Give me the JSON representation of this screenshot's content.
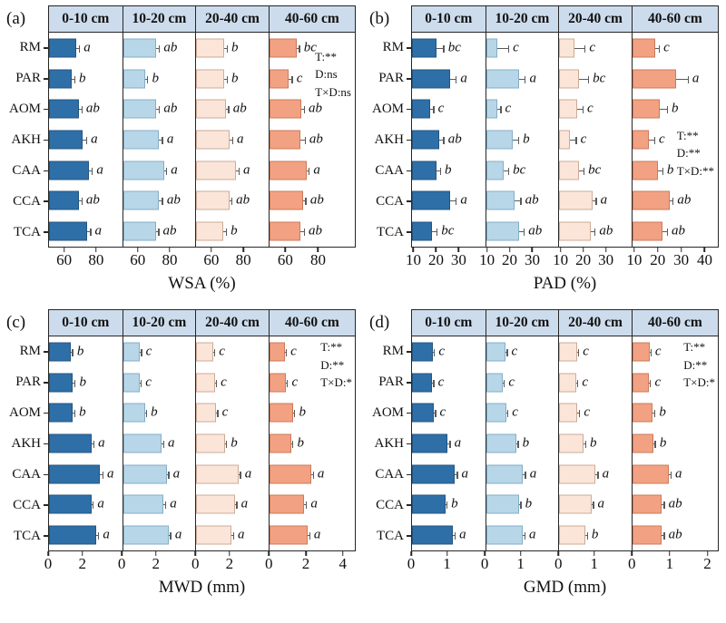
{
  "colors": {
    "depth_fills": [
      "#2e6fa8",
      "#b7d6e8",
      "#fbe5d8",
      "#f2a283"
    ],
    "bar_borders": [
      "#24557f",
      "#85aec7",
      "#cdab97",
      "#cc7a58"
    ],
    "error_bar": "#5a5a5a",
    "header_bg": "#cddcec",
    "frame": "#262626"
  },
  "chart_data": [
    {
      "type": "bar",
      "orientation": "horizontal",
      "panel_label": "(a)",
      "xlabel": "WSA (%)",
      "categories": [
        "RM",
        "PAR",
        "AOM",
        "AKH",
        "CAA",
        "CCA",
        "TCA"
      ],
      "axis": {
        "min": 50,
        "col_max": 96,
        "col4_max": 103,
        "ticks": [
          60,
          80
        ],
        "col4_ticks": [
          60,
          80
        ]
      },
      "stats_lines": [
        "T:**",
        "D:ns",
        "T×D:ns"
      ],
      "series": [
        {
          "name": "0-10 cm",
          "values": [
            67,
            64,
            69,
            71,
            75,
            69,
            74
          ],
          "errors": [
            2,
            2,
            1.5,
            2.5,
            2,
            1.5,
            2
          ],
          "letters": [
            "a",
            "b",
            "ab",
            "a",
            "a",
            "ab",
            "a"
          ]
        },
        {
          "name": "10-20 cm",
          "values": [
            71,
            64,
            71,
            73,
            76,
            73,
            71
          ],
          "errors": [
            2,
            1.5,
            2,
            2,
            1.5,
            2,
            1.5
          ],
          "letters": [
            "ab",
            "b",
            "ab",
            "a",
            "a",
            "ab",
            "ab"
          ]
        },
        {
          "name": "20-40 cm",
          "values": [
            68,
            68,
            69,
            71,
            75,
            71,
            67
          ],
          "errors": [
            1.5,
            1.5,
            1.5,
            2,
            2,
            1.5,
            2
          ],
          "letters": [
            "b",
            "b",
            "ab",
            "a",
            "a",
            "ab",
            "b"
          ]
        },
        {
          "name": "40-60 cm",
          "values": [
            67,
            62,
            70,
            69,
            73,
            71,
            69
          ],
          "errors": [
            1.5,
            2,
            1.5,
            3,
            1.5,
            1.5,
            2.5
          ],
          "letters": [
            "bc",
            "c",
            "ab",
            "ab",
            "a",
            "ab",
            "ab"
          ]
        }
      ]
    },
    {
      "type": "bar",
      "orientation": "horizontal",
      "panel_label": "(b)",
      "xlabel": "PAD (%)",
      "categories": [
        "RM",
        "PAR",
        "AOM",
        "AKH",
        "CAA",
        "CCA",
        "TCA"
      ],
      "axis": {
        "min": 9,
        "col_max": 41.5,
        "col4_max": 46,
        "ticks": [
          10,
          20,
          30
        ],
        "col4_ticks": [
          10,
          20,
          30,
          40
        ]
      },
      "stats_lines": [
        "T:**",
        "D:**",
        "T×D:**"
      ],
      "series": [
        {
          "name": "0-10 cm",
          "values": [
            20,
            26,
            17,
            21,
            20,
            26,
            18
          ],
          "errors": [
            3,
            2.5,
            1.5,
            2,
            1.5,
            2.5,
            2
          ],
          "letters": [
            "bc",
            "a",
            "c",
            "ab",
            "b",
            "a",
            "bc"
          ]
        },
        {
          "name": "10-20 cm",
          "values": [
            14,
            24,
            14,
            21,
            17,
            22,
            24
          ],
          "errors": [
            5,
            2.5,
            1.5,
            2.5,
            2,
            2.5,
            2
          ],
          "letters": [
            "c",
            "a",
            "c",
            "b",
            "bc",
            "ab",
            "ab"
          ]
        },
        {
          "name": "20-40 cm",
          "values": [
            16,
            18,
            17,
            14,
            18,
            24,
            23
          ],
          "errors": [
            4.5,
            4,
            2.5,
            2.5,
            2,
            1.5,
            2
          ],
          "letters": [
            "c",
            "bc",
            "c",
            "c",
            "bc",
            "a",
            "ab"
          ]
        },
        {
          "name": "40-60 cm",
          "values": [
            19,
            28,
            21,
            16,
            20,
            25,
            22
          ],
          "errors": [
            1.5,
            5,
            3,
            2.5,
            2,
            1.5,
            2
          ],
          "letters": [
            "c",
            "a",
            "b",
            "c",
            "b",
            "ab",
            "ab"
          ]
        }
      ]
    },
    {
      "type": "bar",
      "orientation": "horizontal",
      "panel_label": "(c)",
      "xlabel": "MWD (mm)",
      "categories": [
        "RM",
        "PAR",
        "AOM",
        "AKH",
        "CAA",
        "CCA",
        "TCA"
      ],
      "axis": {
        "min": 0,
        "col_max": 4.3,
        "col4_max": 4.7,
        "ticks": [
          0,
          2
        ],
        "col4_ticks": [
          0,
          2,
          4
        ]
      },
      "stats_lines": [
        "T:**",
        "D:**",
        "T×D:*"
      ],
      "series": [
        {
          "name": "0-10 cm",
          "values": [
            1.3,
            1.4,
            1.4,
            2.5,
            3.0,
            2.5,
            2.8
          ],
          "errors": [
            0.08,
            0.12,
            0.1,
            0.12,
            0.15,
            0.08,
            0.1
          ],
          "letters": [
            "b",
            "b",
            "b",
            "a",
            "a",
            "a",
            "a"
          ]
        },
        {
          "name": "10-20 cm",
          "values": [
            1.0,
            1.0,
            1.3,
            2.3,
            2.6,
            2.4,
            2.7
          ],
          "errors": [
            0.08,
            0.06,
            0.08,
            0.1,
            0.1,
            0.12,
            0.12
          ],
          "letters": [
            "c",
            "c",
            "b",
            "a",
            "a",
            "a",
            "a"
          ]
        },
        {
          "name": "20-40 cm",
          "values": [
            1.0,
            1.1,
            1.2,
            1.7,
            2.5,
            2.3,
            2.1
          ],
          "errors": [
            0.08,
            0.08,
            0.06,
            0.08,
            0.12,
            0.1,
            0.1
          ],
          "letters": [
            "c",
            "c",
            "c",
            "b",
            "a",
            "a",
            "a"
          ]
        },
        {
          "name": "40-60 cm",
          "values": [
            0.85,
            0.9,
            1.3,
            1.2,
            2.3,
            1.9,
            2.1
          ],
          "errors": [
            0.06,
            0.08,
            0.08,
            0.08,
            0.1,
            0.12,
            0.1
          ],
          "letters": [
            "c",
            "c",
            "b",
            "b",
            "a",
            "a",
            "a"
          ]
        }
      ]
    },
    {
      "type": "bar",
      "orientation": "horizontal",
      "panel_label": "(d)",
      "xlabel": "GMD (mm)",
      "categories": [
        "RM",
        "PAR",
        "AOM",
        "AKH",
        "CAA",
        "CCA",
        "TCA"
      ],
      "axis": {
        "min": 0,
        "col_max": 2.05,
        "col4_max": 2.3,
        "ticks": [
          0,
          1
        ],
        "col4_ticks": [
          0,
          1,
          2
        ]
      },
      "stats_lines": [
        "T:**",
        "D:**",
        "T×D:*"
      ],
      "series": [
        {
          "name": "0-10 cm",
          "values": [
            0.58,
            0.55,
            0.61,
            1.0,
            1.2,
            0.93,
            1.15
          ],
          "errors": [
            0.04,
            0.05,
            0.04,
            0.06,
            0.06,
            0.04,
            0.05
          ],
          "letters": [
            "c",
            "c",
            "c",
            "a",
            "a",
            "b",
            "a"
          ]
        },
        {
          "name": "10-20 cm",
          "values": [
            0.55,
            0.47,
            0.57,
            0.85,
            1.05,
            0.93,
            1.03
          ],
          "errors": [
            0.04,
            0.04,
            0.04,
            0.05,
            0.06,
            0.05,
            0.06
          ],
          "letters": [
            "c",
            "c",
            "c",
            "b",
            "a",
            "b",
            "a"
          ]
        },
        {
          "name": "20-40 cm",
          "values": [
            0.5,
            0.48,
            0.52,
            0.69,
            1.03,
            0.91,
            0.74
          ],
          "errors": [
            0.04,
            0.04,
            0.05,
            0.05,
            0.06,
            0.05,
            0.05
          ],
          "letters": [
            "c",
            "c",
            "c",
            "b",
            "a",
            "a",
            "b"
          ]
        },
        {
          "name": "40-60 cm",
          "values": [
            0.46,
            0.44,
            0.55,
            0.56,
            0.97,
            0.79,
            0.79
          ],
          "errors": [
            0.03,
            0.04,
            0.05,
            0.05,
            0.06,
            0.06,
            0.06
          ],
          "letters": [
            "c",
            "c",
            "b",
            "b",
            "a",
            "ab",
            "ab"
          ]
        }
      ]
    }
  ]
}
